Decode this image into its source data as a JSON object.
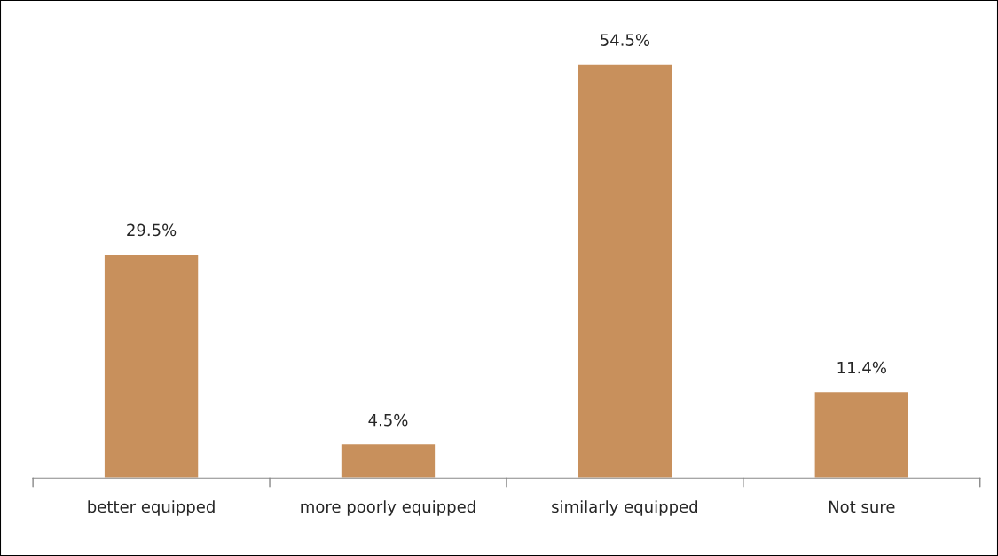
{
  "chart_data": {
    "type": "bar",
    "categories": [
      "better equipped",
      "more poorly equipped",
      "similarly equipped",
      "Not sure"
    ],
    "values": [
      29.5,
      4.5,
      54.5,
      11.4
    ],
    "value_labels": [
      "29.5%",
      "4.5%",
      "54.5%",
      "11.4%"
    ],
    "color": "#c8905c",
    "grid": false,
    "legend": false
  }
}
